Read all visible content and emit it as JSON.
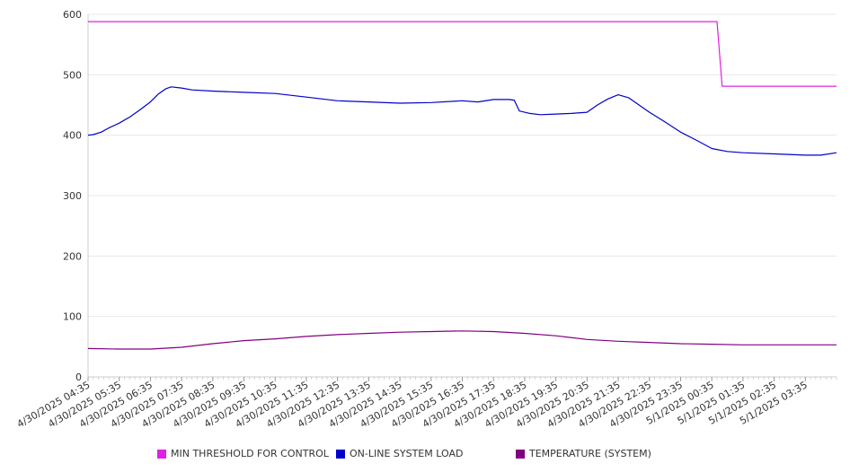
{
  "chart_data": {
    "type": "line",
    "y_ticks": [
      0,
      100,
      200,
      300,
      400,
      500,
      600
    ],
    "ylim": [
      0,
      600
    ],
    "x_tick_labels": [
      "4/30/2025 04:35",
      "4/30/2025 05:35",
      "4/30/2025 06:35",
      "4/30/2025 07:35",
      "4/30/2025 08:35",
      "4/30/2025 09:35",
      "4/30/2025 10:35",
      "4/30/2025 11:35",
      "4/30/2025 12:35",
      "4/30/2025 13:35",
      "4/30/2025 14:35",
      "4/30/2025 15:35",
      "4/30/2025 16:35",
      "4/30/2025 17:35",
      "4/30/2025 18:35",
      "4/30/2025 19:35",
      "4/30/2025 20:35",
      "4/30/2025 21:35",
      "4/30/2025 22:35",
      "4/30/2025 23:35",
      "5/1/2025 00:35",
      "5/1/2025 01:35",
      "5/1/2025 02:35",
      "5/1/2025 03:35"
    ],
    "grid": true,
    "legend_position": "bottom",
    "series": [
      {
        "name": "MIN THRESHOLD FOR CONTROL",
        "color": "#e020e0",
        "points": [
          [
            "4/30/2025 04:35",
            588
          ],
          [
            "5/1/2025 00:45",
            588
          ],
          [
            "5/1/2025 00:55",
            481
          ],
          [
            "5/1/2025 04:35",
            481
          ]
        ]
      },
      {
        "name": "ON-LINE SYSTEM LOAD",
        "color": "#0000cc",
        "points": [
          [
            "4/30/2025 04:35",
            400
          ],
          [
            "4/30/2025 04:45",
            401
          ],
          [
            "4/30/2025 05:00",
            405
          ],
          [
            "4/30/2025 05:15",
            412
          ],
          [
            "4/30/2025 05:35",
            420
          ],
          [
            "4/30/2025 05:55",
            430
          ],
          [
            "4/30/2025 06:15",
            442
          ],
          [
            "4/30/2025 06:35",
            455
          ],
          [
            "4/30/2025 06:50",
            468
          ],
          [
            "4/30/2025 07:05",
            477
          ],
          [
            "4/30/2025 07:15",
            480
          ],
          [
            "4/30/2025 07:35",
            478
          ],
          [
            "4/30/2025 07:55",
            475
          ],
          [
            "4/30/2025 08:35",
            473
          ],
          [
            "4/30/2025 09:35",
            471
          ],
          [
            "4/30/2025 10:35",
            469
          ],
          [
            "4/30/2025 11:35",
            463
          ],
          [
            "4/30/2025 12:35",
            457
          ],
          [
            "4/30/2025 13:35",
            455
          ],
          [
            "4/30/2025 14:35",
            453
          ],
          [
            "4/30/2025 15:35",
            454
          ],
          [
            "4/30/2025 16:35",
            457
          ],
          [
            "4/30/2025 17:05",
            455
          ],
          [
            "4/30/2025 17:35",
            459
          ],
          [
            "4/30/2025 18:05",
            459
          ],
          [
            "4/30/2025 18:15",
            458
          ],
          [
            "4/30/2025 18:25",
            440
          ],
          [
            "4/30/2025 18:45",
            436
          ],
          [
            "4/30/2025 19:05",
            434
          ],
          [
            "4/30/2025 19:35",
            435
          ],
          [
            "4/30/2025 20:05",
            436
          ],
          [
            "4/30/2025 20:35",
            438
          ],
          [
            "4/30/2025 20:55",
            450
          ],
          [
            "4/30/2025 21:15",
            460
          ],
          [
            "4/30/2025 21:35",
            467
          ],
          [
            "4/30/2025 21:55",
            462
          ],
          [
            "4/30/2025 22:15",
            450
          ],
          [
            "4/30/2025 22:35",
            438
          ],
          [
            "4/30/2025 23:05",
            422
          ],
          [
            "4/30/2025 23:35",
            405
          ],
          [
            "5/1/2025 00:05",
            392
          ],
          [
            "5/1/2025 00:35",
            378
          ],
          [
            "5/1/2025 01:05",
            373
          ],
          [
            "5/1/2025 01:35",
            371
          ],
          [
            "5/1/2025 02:35",
            369
          ],
          [
            "5/1/2025 03:35",
            367
          ],
          [
            "5/1/2025 04:05",
            367
          ],
          [
            "5/1/2025 04:35",
            371
          ]
        ]
      },
      {
        "name": "TEMPERATURE (SYSTEM)",
        "color": "#800080",
        "points": [
          [
            "4/30/2025 04:35",
            47
          ],
          [
            "4/30/2025 05:35",
            46
          ],
          [
            "4/30/2025 06:35",
            46
          ],
          [
            "4/30/2025 07:35",
            49
          ],
          [
            "4/30/2025 08:35",
            55
          ],
          [
            "4/30/2025 09:35",
            60
          ],
          [
            "4/30/2025 10:35",
            63
          ],
          [
            "4/30/2025 11:35",
            67
          ],
          [
            "4/30/2025 12:35",
            70
          ],
          [
            "4/30/2025 13:35",
            72
          ],
          [
            "4/30/2025 14:35",
            74
          ],
          [
            "4/30/2025 15:35",
            75
          ],
          [
            "4/30/2025 16:35",
            76
          ],
          [
            "4/30/2025 17:35",
            75
          ],
          [
            "4/30/2025 18:35",
            72
          ],
          [
            "4/30/2025 19:35",
            68
          ],
          [
            "4/30/2025 20:35",
            62
          ],
          [
            "4/30/2025 21:35",
            59
          ],
          [
            "4/30/2025 22:35",
            57
          ],
          [
            "4/30/2025 23:35",
            55
          ],
          [
            "5/1/2025 00:35",
            54
          ],
          [
            "5/1/2025 01:35",
            53
          ],
          [
            "5/1/2025 02:35",
            53
          ],
          [
            "5/1/2025 03:35",
            53
          ],
          [
            "5/1/2025 04:35",
            53
          ]
        ]
      }
    ]
  }
}
